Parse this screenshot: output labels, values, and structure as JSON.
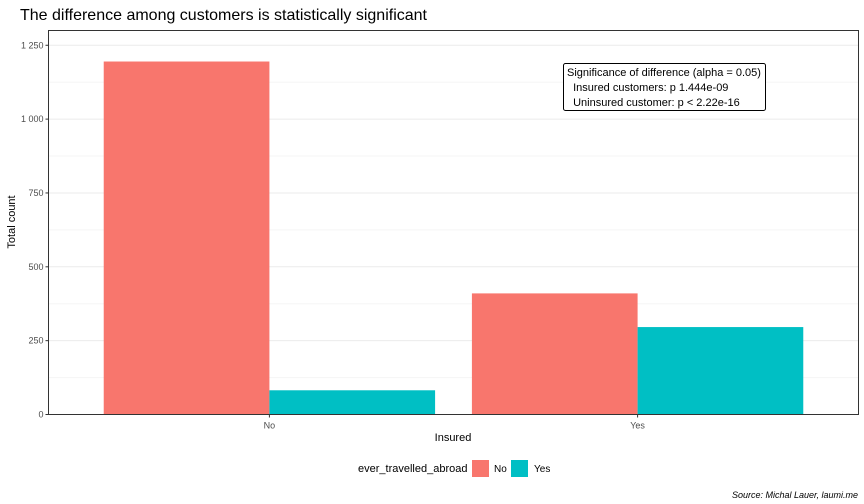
{
  "chart_data": {
    "type": "bar",
    "title": "The difference among customers is statistically significant",
    "xlabel": "Insured",
    "ylabel": "Total count",
    "categories": [
      "No",
      "Yes"
    ],
    "series": [
      {
        "name": "No",
        "values": [
          1195,
          410
        ],
        "color": "#F8766D"
      },
      {
        "name": "Yes",
        "values": [
          82,
          296
        ],
        "color": "#00BFC4"
      }
    ],
    "ylim": [
      0,
      1300
    ],
    "yticks": [
      0,
      250,
      500,
      750,
      1000,
      1250
    ],
    "ytick_labels": [
      "0",
      "250",
      "500",
      "750",
      "1 000",
      "1 250"
    ],
    "grid": true,
    "legend": {
      "title": "ever_travelled_abroad",
      "position": "bottom",
      "items": [
        "No",
        "Yes"
      ]
    },
    "annotation": {
      "lines": [
        "Significance of difference (alpha = 0.05)",
        "  Insured customers: p 1.444e-09",
        "  Uninsured customer: p < 2.22e-16"
      ],
      "position": "top-right"
    },
    "caption": "Source: Michal Lauer, laumi.me"
  },
  "colors": {
    "panel_border": "#333333",
    "grid_major": "#ebebeb",
    "grid_minor": "#f5f5f5",
    "tick": "#333333"
  }
}
